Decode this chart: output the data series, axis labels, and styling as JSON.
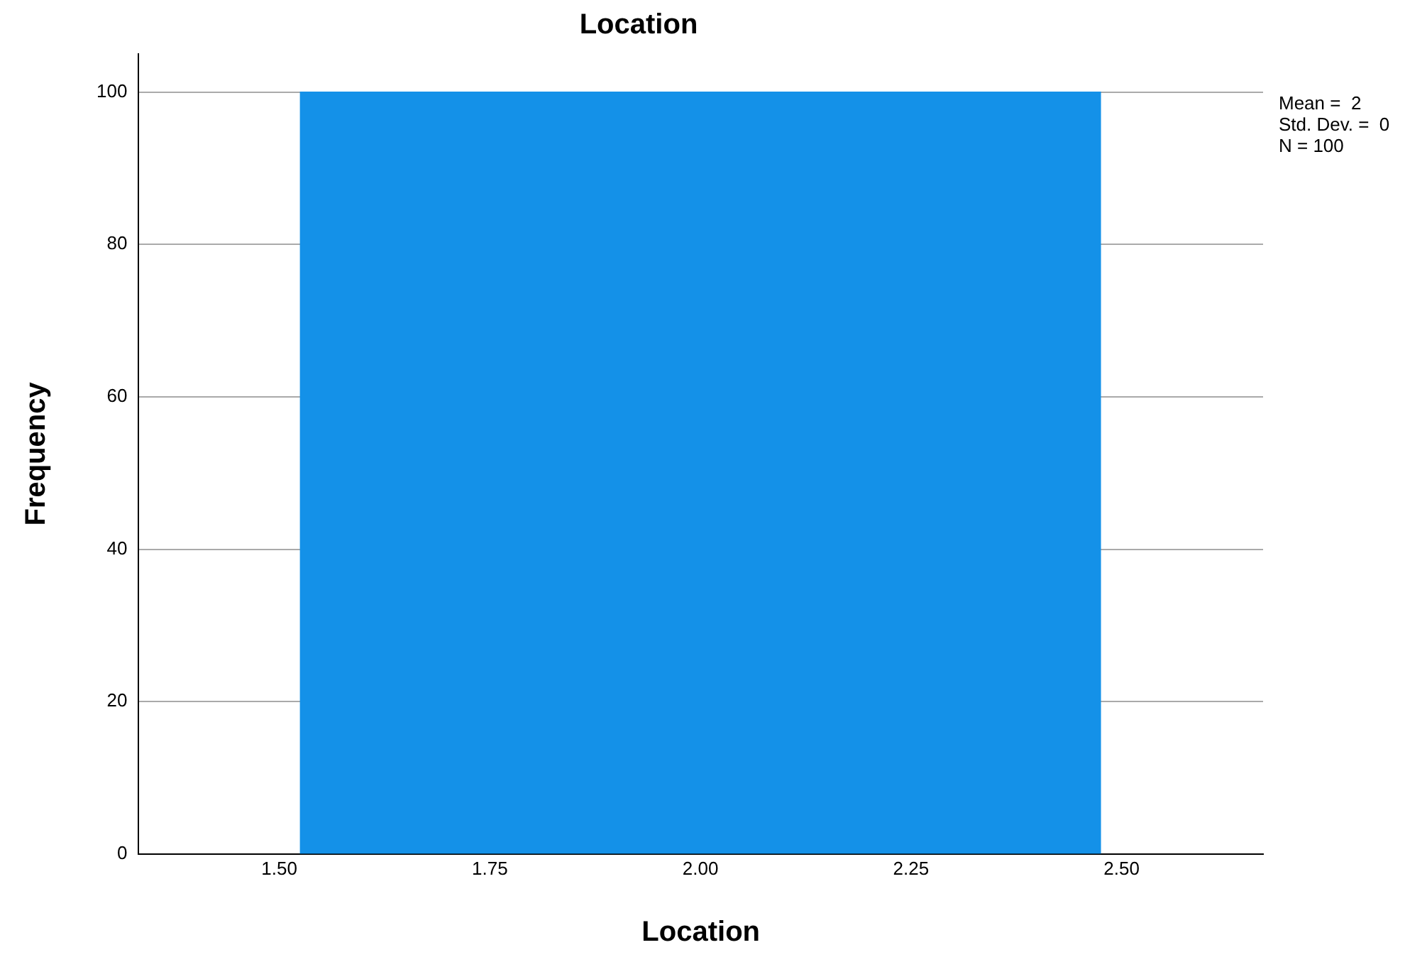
{
  "chart_data": {
    "type": "histogram",
    "title": "Location",
    "xlabel": "Location",
    "ylabel": "Frequency",
    "bins": [
      1.525,
      2.475
    ],
    "values": [
      100
    ],
    "color": "#1491e8",
    "xlim": [
      1.333,
      2.668
    ],
    "xticks": [
      {
        "value": 1.5,
        "label": "1.50"
      },
      {
        "value": 1.75,
        "label": "1.75"
      },
      {
        "value": 2,
        "label": "2.00"
      },
      {
        "value": 2.25,
        "label": "2.25"
      },
      {
        "value": 2.5,
        "label": "2.50"
      }
    ],
    "ylim": [
      0,
      105
    ],
    "yticks": [
      0,
      20,
      40,
      60,
      80,
      100
    ],
    "grid": "y",
    "legend": false,
    "annotations": [
      "Mean =  2",
      "Std. Dev. =  0",
      "N = 100"
    ]
  }
}
